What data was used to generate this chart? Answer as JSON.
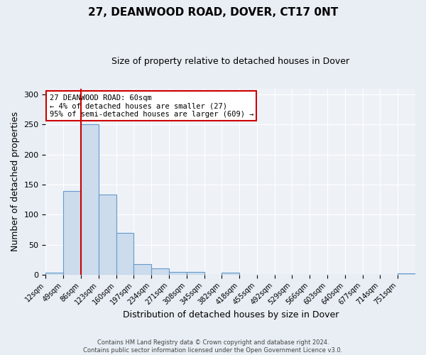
{
  "title": "27, DEANWOOD ROAD, DOVER, CT17 0NT",
  "subtitle": "Size of property relative to detached houses in Dover",
  "xlabel": "Distribution of detached houses by size in Dover",
  "ylabel": "Number of detached properties",
  "bin_labels": [
    "12sqm",
    "49sqm",
    "86sqm",
    "123sqm",
    "160sqm",
    "197sqm",
    "234sqm",
    "271sqm",
    "308sqm",
    "345sqm",
    "382sqm",
    "418sqm",
    "455sqm",
    "492sqm",
    "529sqm",
    "566sqm",
    "603sqm",
    "640sqm",
    "677sqm",
    "714sqm",
    "751sqm"
  ],
  "bar_values": [
    3,
    139,
    250,
    134,
    70,
    18,
    11,
    5,
    5,
    0,
    3,
    0,
    0,
    0,
    0,
    0,
    0,
    0,
    0,
    0,
    2
  ],
  "bar_color": "#ccdcec",
  "bar_edge_color": "#6699cc",
  "vline_x_index": 2,
  "vline_color": "#cc0000",
  "ylim": [
    0,
    310
  ],
  "yticks": [
    0,
    50,
    100,
    150,
    200,
    250,
    300
  ],
  "annotation_title": "27 DEANWOOD ROAD: 60sqm",
  "annotation_line1": "← 4% of detached houses are smaller (27)",
  "annotation_line2": "95% of semi-detached houses are larger (609) →",
  "annotation_box_color": "#ffffff",
  "annotation_border_color": "#cc0000",
  "footer_line1": "Contains HM Land Registry data © Crown copyright and database right 2024.",
  "footer_line2": "Contains public sector information licensed under the Open Government Licence v3.0.",
  "fig_background_color": "#e8eef4",
  "plot_background_color": "#eef2f7"
}
